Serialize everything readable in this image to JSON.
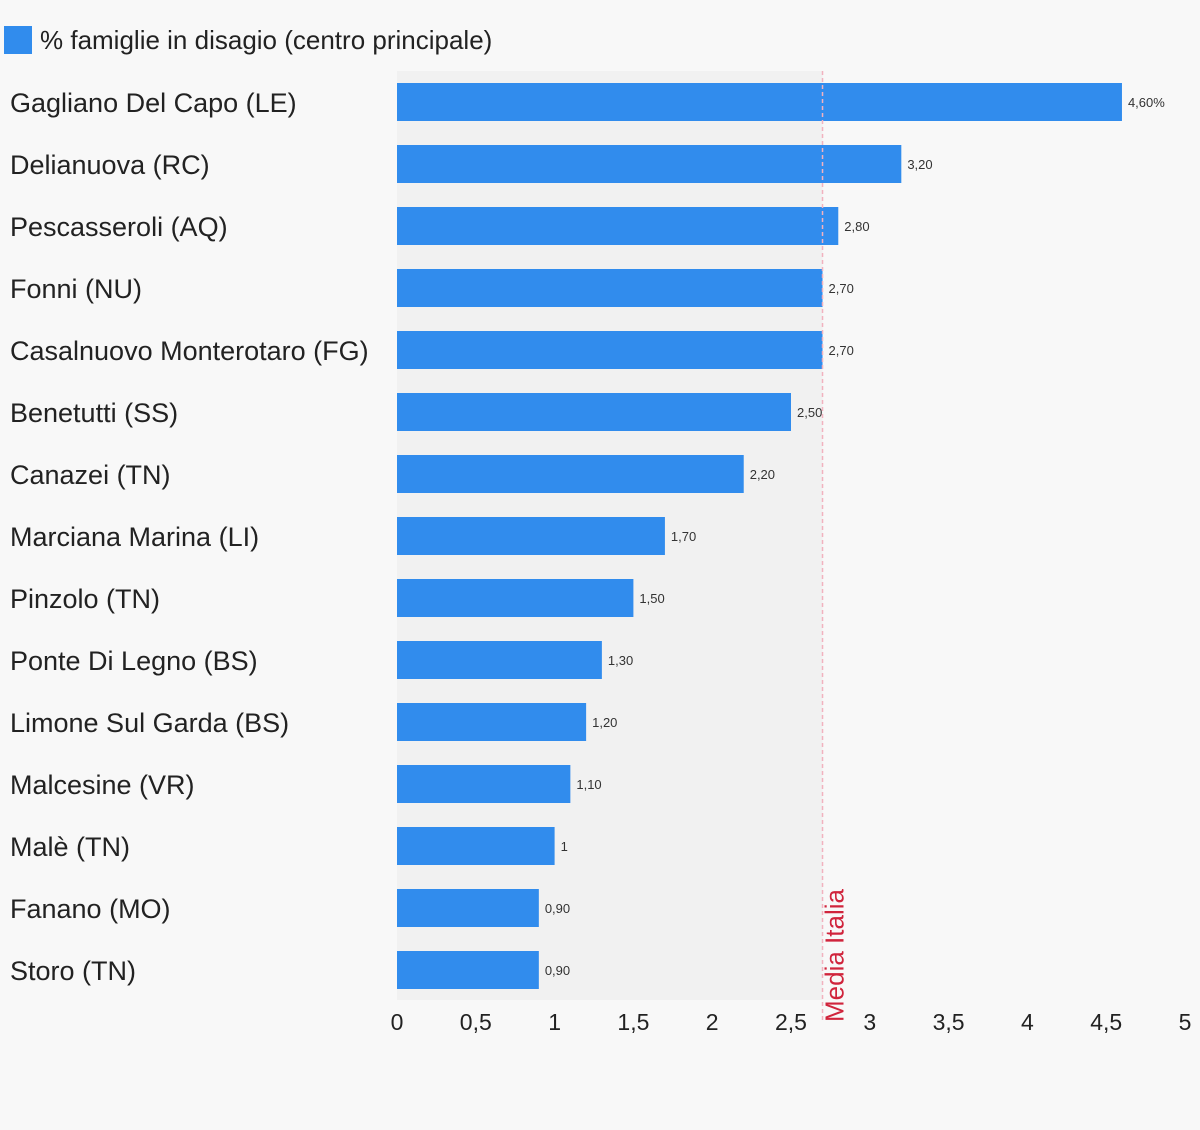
{
  "chart_data": {
    "type": "bar",
    "orientation": "horizontal",
    "title": "",
    "legend": {
      "position": "top-left",
      "entries": [
        "% famiglie in disagio (centro principale)"
      ]
    },
    "series": [
      {
        "name": "% famiglie in disagio (centro principale)",
        "color": "#318ced",
        "values": [
          4.6,
          3.2,
          2.8,
          2.7,
          2.7,
          2.5,
          2.2,
          1.7,
          1.5,
          1.3,
          1.2,
          1.1,
          1.0,
          0.9,
          0.9
        ]
      }
    ],
    "categories": [
      "Gagliano Del Capo (LE)",
      "Delianuova (RC)",
      "Pescasseroli (AQ)",
      "Fonni (NU)",
      "Casalnuovo Monterotaro (FG)",
      "Benetutti (SS)",
      "Canazei (TN)",
      "Marciana Marina (LI)",
      "Pinzolo (TN)",
      "Ponte Di Legno (BS)",
      "Limone Sul Garda (BS)",
      "Malcesine (VR)",
      "Malè (TN)",
      "Fanano (MO)",
      "Storo (TN)"
    ],
    "data_labels": [
      "4,60%",
      "3,20",
      "2,80",
      "2,70",
      "2,70",
      "2,50",
      "2,20",
      "1,70",
      "1,50",
      "1,30",
      "1,20",
      "1,10",
      "1",
      "0,90",
      "0,90"
    ],
    "xlim": [
      0,
      5
    ],
    "x_ticks": [
      0,
      0.5,
      1,
      1.5,
      2,
      2.5,
      3,
      3.5,
      4,
      4.5,
      5
    ],
    "x_tick_labels": [
      "0",
      "0,5",
      "1",
      "1,5",
      "2",
      "2,5",
      "3",
      "3,5",
      "4",
      "4,5",
      "5"
    ],
    "xlabel": "",
    "ylabel": "",
    "grid": false,
    "shaded_region": {
      "from": 0,
      "to": 2.7,
      "color": "#f1f1f1"
    },
    "reference_line": {
      "value": 2.7,
      "label": "Media Italia",
      "color": "#d0243c",
      "line_color": "#f2b2bf"
    }
  }
}
